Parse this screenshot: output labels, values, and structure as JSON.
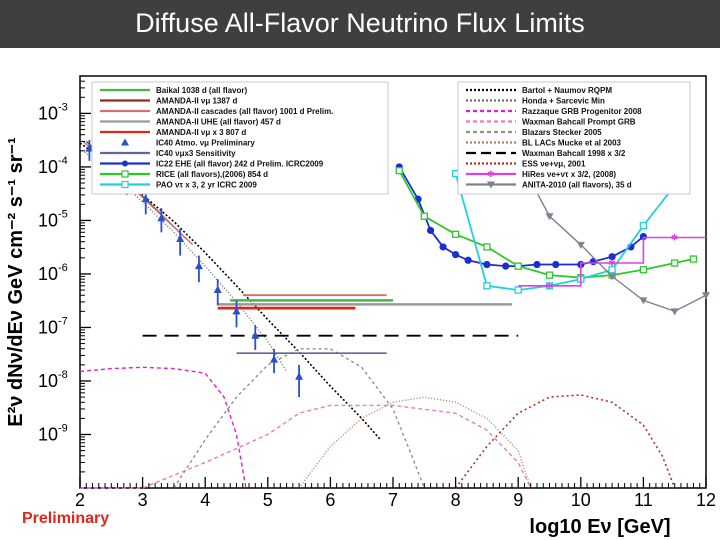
{
  "slide": {
    "title": "Diffuse All-Flavor Neutrino Flux Limits",
    "footer_note": "Preliminary"
  },
  "chart_data": {
    "type": "line",
    "xlabel": "log10 Eν [GeV]",
    "ylabel": "E²ν dNν/dEν GeV cm⁻² s⁻¹ sr⁻¹",
    "xlim": [
      2,
      12
    ],
    "ylim": [
      1e-10,
      0.005
    ],
    "yscale": "log",
    "x_ticks": [
      "2",
      "3",
      "4",
      "5",
      "6",
      "7",
      "8",
      "9",
      "10",
      "11",
      "12"
    ],
    "y_ticks": [
      {
        "v": 0.001,
        "label": "10-3"
      },
      {
        "v": 0.0001,
        "label": "10-4"
      },
      {
        "v": 1e-05,
        "label": "10-5"
      },
      {
        "v": 1e-06,
        "label": "10-6"
      },
      {
        "v": 1e-07,
        "label": "10-7"
      },
      {
        "v": 1e-08,
        "label": "10-8"
      },
      {
        "v": 1e-09,
        "label": "10-9"
      }
    ],
    "legend_left": [
      {
        "name": "Baikal 1038 d (all flavor)",
        "color": "#44b844",
        "style": "solid"
      },
      {
        "name": "AMANDA-II νμ 1387 d",
        "color": "#8b2c2c",
        "style": "solid"
      },
      {
        "name": "AMANDA-II cascades (all flavor) 1001 d Prelim.",
        "color": "#d07070",
        "style": "solid"
      },
      {
        "name": "AMANDA-II UHE (all flavor) 457 d",
        "color": "#9a9a9a",
        "style": "solid"
      },
      {
        "name": "AMANDA-II νμ x 3 807 d",
        "color": "#e0261b",
        "style": "solid"
      },
      {
        "name": "IC40 Atmo. νμ Preliminary",
        "color": "#2a4fd0",
        "style": "triangle"
      },
      {
        "name": "IC40 νμx3 Sensitivity",
        "color": "#5a6a9a",
        "style": "solid"
      },
      {
        "name": "IC22 EHE (all flavor) 242 d Prelim. ICRC2009",
        "color": "#1a2fd0",
        "style": "circle"
      },
      {
        "name": "RICE (all flavors),(2006) 854 d",
        "color": "#2ec82e",
        "style": "square"
      },
      {
        "name": "PAO ντ x 3, 2 yr ICRC 2009",
        "color": "#22d0e0",
        "style": "square"
      }
    ],
    "legend_right": [
      {
        "name": "Bartol + Naumov RQPM",
        "color": "#000000",
        "style": "dotted"
      },
      {
        "name": "Honda + Sarcevic Min",
        "color": "#707070",
        "style": "dotted"
      },
      {
        "name": "Razzaque GRB Progenitor 2008",
        "color": "#e020d0",
        "style": "dashed"
      },
      {
        "name": "Waxman Bahcall Prompt GRB",
        "color": "#e080c0",
        "style": "dashed"
      },
      {
        "name": "Blazars Stecker 2005",
        "color": "#909090",
        "style": "dashed"
      },
      {
        "name": "BL LACs Mucke et al 2003",
        "color": "#b08060",
        "style": "dotted"
      },
      {
        "name": "Waxman Bahcall 1998 x 3/2",
        "color": "#000000",
        "style": "longdash"
      },
      {
        "name": "ESS νe+νμ, 2001",
        "color": "#b03020",
        "style": "dotted"
      },
      {
        "name": "HiRes νe+ντ x 3/2, (2008)",
        "color": "#e040e0",
        "style": "star"
      },
      {
        "name": "ANITA-2010 (all flavors), 35 d",
        "color": "#808090",
        "style": "tri-down"
      }
    ],
    "series": [
      {
        "name": "Bartol + Naumov RQPM",
        "color": "#000000",
        "dash": "2,2",
        "width": 1.6,
        "x": [
          2.0,
          2.5,
          3.0,
          3.5,
          4.0,
          4.5,
          5.0,
          5.5,
          6.0,
          6.5,
          6.8
        ],
        "y": [
          0.00028,
          0.00011,
          3e-05,
          9.5e-06,
          2.5e-06,
          6e-07,
          1.4e-07,
          3.5e-08,
          8e-09,
          2e-09,
          8e-10
        ]
      },
      {
        "name": "Honda + Sarcevic Min",
        "color": "#707070",
        "dash": "1,2",
        "width": 1.4,
        "x": [
          2.0,
          2.5,
          3.0,
          3.5,
          4.0,
          4.5,
          5.0,
          5.3
        ],
        "y": [
          0.00022,
          8e-05,
          2.2e-05,
          6e-06,
          1.4e-06,
          3e-07,
          5.5e-08,
          1.5e-08
        ]
      },
      {
        "name": "Razzaque GRB Progenitor 2008",
        "color": "#e020d0",
        "dash": "4,3",
        "width": 1.4,
        "x": [
          2.0,
          2.5,
          3.0,
          3.5,
          4.0,
          4.3,
          4.5,
          4.65
        ],
        "y": [
          1.5e-08,
          1.7e-08,
          1.8e-08,
          1.7e-08,
          1.4e-08,
          5e-09,
          1e-09,
          1e-10
        ]
      },
      {
        "name": "Waxman Bahcall Prompt GRB",
        "color": "#e080c0",
        "dash": "4,3",
        "width": 1.4,
        "x": [
          2.0,
          3.0,
          4.0,
          5.0,
          5.5,
          6.0,
          7.0,
          8.0,
          8.5,
          9.0,
          9.2
        ],
        "y": [
          1e-10,
          1e-10,
          3e-10,
          1e-09,
          2.5e-09,
          3.5e-09,
          3.5e-09,
          2.5e-09,
          1.2e-09,
          3e-10,
          1e-10
        ]
      },
      {
        "name": "Blazars Stecker 2005",
        "color": "#909090",
        "dash": "3,3",
        "width": 1.4,
        "x": [
          3.5,
          4.0,
          4.5,
          5.0,
          5.5,
          6.0,
          6.5,
          7.0,
          7.3,
          7.5
        ],
        "y": [
          1e-10,
          8e-10,
          5e-09,
          2e-08,
          4e-08,
          4e-08,
          1.8e-08,
          3e-09,
          4e-10,
          1e-10
        ]
      },
      {
        "name": "BL LACs Mucke et al 2003",
        "color": "#b08060",
        "dash": "1,2",
        "width": 1.4,
        "x": [
          5.5,
          6.0,
          6.5,
          7.0,
          7.5,
          8.0,
          8.5,
          9.0,
          9.2
        ],
        "y": [
          1e-10,
          6e-10,
          2e-09,
          4e-09,
          5e-09,
          4e-09,
          2e-09,
          5e-10,
          1e-10
        ]
      },
      {
        "name": "Waxman Bahcall 1998 x 3/2",
        "color": "#000000",
        "dash": "14,8",
        "width": 1.8,
        "x": [
          3.0,
          9.0
        ],
        "y": [
          7e-08,
          7e-08
        ]
      },
      {
        "name": "ESS νe+νμ, 2001",
        "color": "#b03020",
        "dash": "2,3",
        "width": 1.6,
        "x": [
          8.0,
          8.5,
          9.0,
          9.5,
          10.0,
          10.5,
          11.0,
          11.3,
          11.5
        ],
        "y": [
          1e-10,
          6e-10,
          2.5e-09,
          5e-09,
          5.5e-09,
          4e-09,
          1.5e-09,
          4e-10,
          1e-10
        ]
      },
      {
        "name": "Baikal 1038 d (all flavor)",
        "color": "#44b844",
        "dash": "",
        "width": 2.5,
        "x": [
          4.4,
          7.0
        ],
        "y": [
          3.2e-07,
          3.2e-07
        ]
      },
      {
        "name": "AMANDA-II νμ 1387 d",
        "color": "#8b2c2c",
        "dash": "",
        "width": 1.4,
        "x": [
          2.1,
          3.7
        ],
        "y": [
          0.0003,
          4.5e-06
        ]
      },
      {
        "name": "AMANDA-II νμ 1387 d (band)",
        "color": "#d07070",
        "dash": "",
        "width": 1.4,
        "x": [
          2.05,
          3.8
        ],
        "y": [
          0.0003,
          3.5e-06
        ]
      },
      {
        "name": "AMANDA-II cascades (all flavor) 1001 d Prelim.",
        "color": "#d07070",
        "dash": "",
        "width": 1.8,
        "x": [
          4.6,
          6.9
        ],
        "y": [
          4e-07,
          4e-07
        ]
      },
      {
        "name": "AMANDA-II UHE (all flavor) 457 d",
        "color": "#9a9a9a",
        "dash": "",
        "width": 2.5,
        "x": [
          4.2,
          8.9
        ],
        "y": [
          2.7e-07,
          2.7e-07
        ]
      },
      {
        "name": "AMANDA-II νμ x 3 807 d",
        "color": "#e0261b",
        "dash": "",
        "width": 2.8,
        "x": [
          4.2,
          6.4
        ],
        "y": [
          2.3e-07,
          2.3e-07
        ]
      },
      {
        "name": "IC40 νμx3 Sensitivity",
        "color": "#5a6a9a",
        "dash": "",
        "width": 1.6,
        "x": [
          4.5,
          6.9
        ],
        "y": [
          3.3e-08,
          3.3e-08
        ]
      },
      {
        "name": "IC22 EHE (all flavor) 242 d Prelim. ICRC2009",
        "color": "#1a2fd0",
        "dash": "",
        "width": 1.8,
        "marker": "circle",
        "x": [
          7.1,
          7.4,
          7.6,
          7.8,
          8.0,
          8.2,
          8.5,
          8.8,
          9.0,
          9.3,
          9.6,
          10.0,
          10.2,
          10.5,
          10.8,
          11.0
        ],
        "y": [
          0.0001,
          2.5e-05,
          6.5e-06,
          3.2e-06,
          2.3e-06,
          1.8e-06,
          1.5e-06,
          1.4e-06,
          1.4e-06,
          1.5e-06,
          1.5e-06,
          1.5e-06,
          1.7e-06,
          2.1e-06,
          3.2e-06,
          5e-06
        ]
      },
      {
        "name": "RICE (all flavors),(2006) 854 d",
        "color": "#2ec82e",
        "dash": "",
        "width": 1.8,
        "marker": "square",
        "x": [
          7.1,
          7.5,
          8.0,
          8.5,
          9.0,
          9.5,
          10.0,
          10.5,
          11.0,
          11.5,
          11.8
        ],
        "y": [
          8.5e-05,
          1.2e-05,
          5.5e-06,
          3.2e-06,
          1.4e-06,
          9.5e-07,
          8.5e-07,
          9.5e-07,
          1.2e-06,
          1.6e-06,
          1.9e-06
        ]
      },
      {
        "name": "PAO ντ x 3, 2 yr ICRC 2009",
        "color": "#22d0e0",
        "dash": "",
        "width": 1.8,
        "marker": "square",
        "x": [
          8.0,
          8.5,
          9.0,
          9.5,
          10.0,
          10.5,
          11.0,
          11.5
        ],
        "y": [
          7.5e-05,
          6e-07,
          5e-07,
          6e-07,
          8e-07,
          1.2e-06,
          8e-06,
          4.5e-05
        ]
      },
      {
        "name": "HiRes νe+ντ x 3/2, (2008)",
        "color": "#e040e0",
        "dash": "",
        "width": 1.6,
        "marker": "step",
        "x": [
          9.0,
          10.0,
          10.0,
          11.0,
          11.0,
          12.0
        ],
        "y": [
          6e-07,
          6e-07,
          1.6e-06,
          1.6e-06,
          4.8e-06,
          4.8e-06
        ]
      },
      {
        "name": "ANITA-2010 (all flavors), 35 d",
        "color": "#808090",
        "dash": "",
        "width": 1.4,
        "marker": "tri",
        "x": [
          9.0,
          9.5,
          10.0,
          10.5,
          11.0,
          11.5,
          12.0
        ],
        "y": [
          0.00015,
          1.2e-05,
          3.5e-06,
          9e-07,
          3.2e-07,
          2e-07,
          4e-07
        ]
      }
    ],
    "points": {
      "name": "IC40 Atmo. νμ Preliminary",
      "color": "#2a4fd0",
      "x": [
        2.15,
        2.45,
        2.75,
        3.05,
        3.3,
        3.6,
        3.9,
        4.2,
        4.5,
        4.8,
        5.1,
        5.5
      ],
      "y": [
        0.00022,
        0.00013,
        6e-05,
        2.5e-05,
        1.1e-05,
        4.5e-06,
        1.4e-06,
        5e-07,
        2e-07,
        7e-08,
        2.5e-08,
        1.2e-08
      ],
      "err_lo": [
        0.00013,
        7e-05,
        3e-05,
        1.3e-05,
        6e-06,
        2.2e-06,
        7e-07,
        2.6e-07,
        1e-07,
        3.8e-08,
        1.4e-08,
        5e-09
      ],
      "err_hi": [
        0.00032,
        0.00019,
        9e-05,
        3.8e-05,
        1.7e-05,
        7e-06,
        2.2e-06,
        8e-07,
        3.2e-07,
        1.1e-07,
        4e-08,
        2e-08
      ]
    }
  }
}
